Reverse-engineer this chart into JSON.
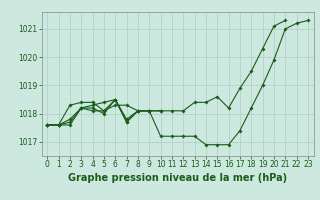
{
  "xlabel": "Graphe pression niveau de la mer (hPa)",
  "background_color": "#cce8df",
  "line_color": "#1a5c1a",
  "grid_color": "#aacfC4",
  "yticks": [
    1017,
    1018,
    1019,
    1020,
    1021
  ],
  "xticks": [
    0,
    1,
    2,
    3,
    4,
    5,
    6,
    7,
    8,
    9,
    10,
    11,
    12,
    13,
    14,
    15,
    16,
    17,
    18,
    19,
    20,
    21,
    22,
    23
  ],
  "ylim": [
    1016.5,
    1021.6
  ],
  "xlim": [
    -0.5,
    23.5
  ],
  "series": [
    [
      1017.6,
      1017.6,
      1017.7,
      1018.2,
      1018.2,
      1018.0,
      1018.5,
      1017.7,
      1018.1,
      1018.1,
      1017.2,
      1017.2,
      1017.2,
      1017.2,
      1016.9,
      1016.9,
      1016.9,
      1017.4,
      1018.2,
      1019.0,
      1019.9,
      1021.0,
      1021.2,
      1021.3
    ],
    [
      1017.6,
      1017.6,
      1017.8,
      1018.2,
      1018.1,
      1018.1,
      1018.5,
      1017.7,
      1018.1,
      1018.1,
      1018.1,
      1018.1,
      1018.1,
      1018.4,
      1018.4,
      1018.6,
      1018.2,
      1018.9,
      1019.5,
      1020.3,
      1021.1,
      1021.3,
      null,
      null
    ],
    [
      1017.6,
      1017.6,
      1017.6,
      1018.2,
      1018.3,
      1018.4,
      1018.5,
      1017.8,
      1018.1,
      1018.1,
      1018.1,
      null,
      null,
      null,
      null,
      null,
      null,
      null,
      null,
      null,
      null,
      null,
      null,
      null
    ],
    [
      1017.6,
      1017.6,
      1018.3,
      1018.4,
      1018.4,
      1018.1,
      1018.3,
      1018.3,
      1018.1,
      1018.1,
      null,
      null,
      null,
      null,
      null,
      null,
      null,
      null,
      null,
      null,
      null,
      null,
      null,
      null
    ]
  ],
  "tick_fontsize": 5.5,
  "xlabel_fontsize": 7.0,
  "tick_color": "#1a5c1a",
  "xlabel_color": "#1a5c1a",
  "marker_size": 1.8,
  "line_width": 0.8
}
